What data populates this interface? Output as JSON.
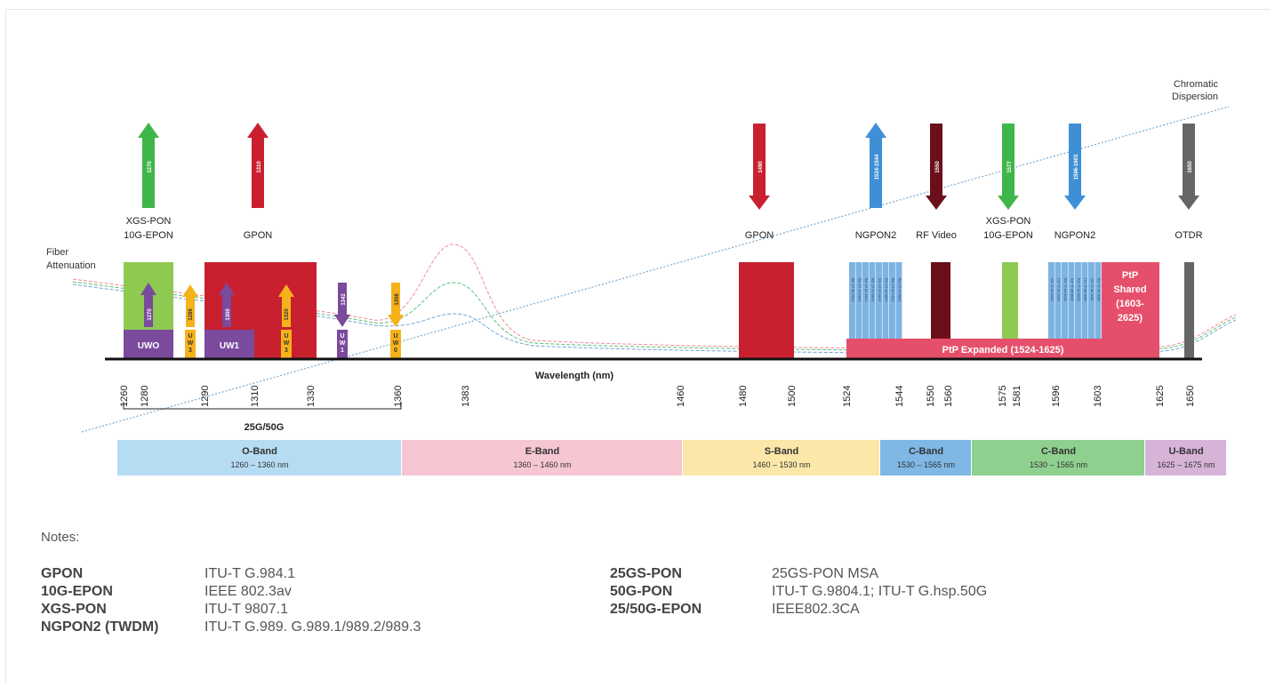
{
  "axis": {
    "label": "Wavelength (nm)"
  },
  "curve_labels": {
    "fiber_line1": "Fiber",
    "fiber_line2": "Attenuation",
    "chromatic_line1": "Chromatic",
    "chromatic_line2": "Dispersion"
  },
  "ticks": [
    "1260",
    "1280",
    "1290",
    "1310",
    "1330",
    "1360",
    "1383",
    "1460",
    "1480",
    "1500",
    "1524",
    "1544",
    "1550",
    "1560",
    "1575",
    "1581",
    "1596",
    "1603",
    "1625",
    "1650"
  ],
  "range_label": "25G/50G",
  "top_arrows": [
    {
      "value": "1270",
      "dir": "up",
      "color": "#3fb649",
      "label1": "XGS-PON",
      "label2": "10G-EPON"
    },
    {
      "value": "1310",
      "dir": "up",
      "color": "#c8202f",
      "label1": "GPON",
      "label2": ""
    },
    {
      "value": "1490",
      "dir": "down",
      "color": "#c8202f",
      "label1": "GPON",
      "label2": ""
    },
    {
      "value": "1524-1544",
      "dir": "up",
      "color": "#3e8fd6",
      "label1": "NGPON2",
      "label2": ""
    },
    {
      "value": "1550",
      "dir": "down",
      "color": "#6b0f1a",
      "label1": "RF Video",
      "label2": ""
    },
    {
      "value": "1577",
      "dir": "down",
      "color": "#3fb649",
      "label1": "XGS-PON",
      "label2": "10G-EPON"
    },
    {
      "value": "1596-1603",
      "dir": "down",
      "color": "#3e8fd6",
      "label1": "NGPON2",
      "label2": ""
    },
    {
      "value": "1650",
      "dir": "down",
      "color": "#666666",
      "label1": "OTDR",
      "label2": ""
    }
  ],
  "small_arrows": [
    "1270",
    "1286",
    "1300",
    "1320",
    "1342",
    "1358"
  ],
  "window_labels": {
    "uwo": "UWO",
    "uw1": "UW1",
    "uw3a": "U W 3",
    "uw3b": "U W 3",
    "uw1b": "U W 1",
    "uw0": "U W 0"
  },
  "ngpon2_left": [
    "1532.68 (C-36)",
    "1533.47 (C-35)",
    "1534.25 (C-34)",
    "1535.04 (C-33)",
    "1535.82 (C-32)",
    "1536.61 (C-31)",
    "1537.40 (C-30)",
    "1538.19 (C-29)"
  ],
  "ngpon2_right": [
    "1596.34 (L-16)",
    "1597.19 (L-17)",
    "1598.04 (L-18)",
    "1598.89 (L-19)",
    "1599.75 (L-20)",
    "1600.60 (L-21)",
    "1601.46 (L-22)",
    "1602.31 (L-23)"
  ],
  "ptp_shared": [
    "PtP",
    "Shared",
    "(1603-",
    "2625)"
  ],
  "ptp_expanded": "PtP Expanded (1524-1625)",
  "bands": [
    {
      "name": "O-Band",
      "range": "1260 – 1360 nm",
      "color": "#b6dcf3"
    },
    {
      "name": "E-Band",
      "range": "1360 – 1460 nm",
      "color": "#f6c6d3"
    },
    {
      "name": "S-Band",
      "range": "1460 – 1530 nm",
      "color": "#fbe7a8"
    },
    {
      "name": "C-Band",
      "range": "1530 – 1565 nm",
      "color": "#7fb7e5"
    },
    {
      "name": "C-Band",
      "range": "1530 – 1565 nm",
      "color": "#8fd08f"
    },
    {
      "name": "U-Band",
      "range": "1625 – 1675 nm",
      "color": "#d7b3d8"
    }
  ],
  "notes": {
    "title": "Notes:",
    "left": [
      {
        "key": "GPON",
        "value": "ITU-T G.984.1"
      },
      {
        "key": "10G-EPON",
        "value": "IEEE 802.3av"
      },
      {
        "key": "XGS-PON",
        "value": "ITU-T 9807.1"
      },
      {
        "key": "NGPON2 (TWDM)",
        "value": "ITU-T G.989. G.989.1/989.2/989.3"
      }
    ],
    "right": [
      {
        "key": "25GS-PON",
        "value": "25GS-PON MSA"
      },
      {
        "key": "50G-PON",
        "value": "ITU-T G.9804.1; ITU-T G.hsp.50G"
      },
      {
        "key": "25/50G-EPON",
        "value": "IEEE802.3CA"
      }
    ]
  }
}
